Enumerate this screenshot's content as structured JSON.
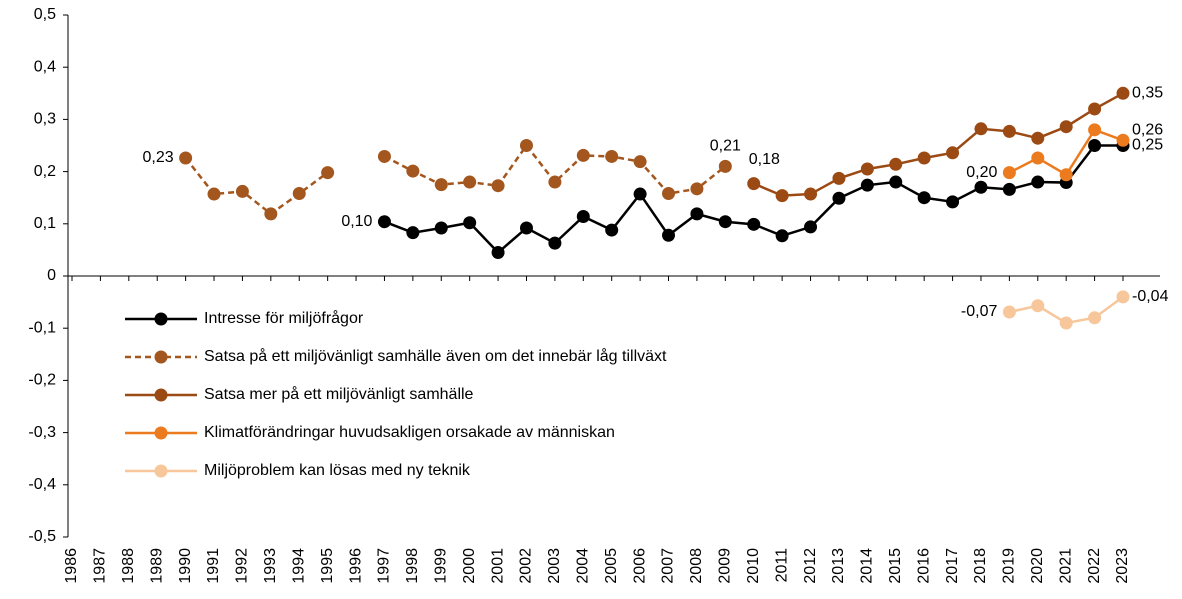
{
  "chart_data": {
    "type": "line",
    "categories": [
      "1986",
      "1987",
      "1988",
      "1989",
      "1990",
      "1991",
      "1992",
      "1993",
      "1994",
      "1995",
      "1996",
      "1997",
      "1998",
      "1999",
      "2000",
      "2001",
      "2002",
      "2003",
      "2004",
      "2005",
      "2006",
      "2007",
      "2008",
      "2009",
      "2010",
      "2011",
      "2012",
      "2013",
      "2014",
      "2015",
      "2016",
      "2017",
      "2018",
      "2019",
      "2020",
      "2021",
      "2022",
      "2023"
    ],
    "ylim": [
      -0.5,
      0.5
    ],
    "yticks": [
      {
        "value": -0.5,
        "label": "-0,5"
      },
      {
        "value": -0.4,
        "label": "-0,4"
      },
      {
        "value": -0.3,
        "label": "-0,3"
      },
      {
        "value": -0.2,
        "label": "-0,2"
      },
      {
        "value": -0.1,
        "label": "-0,1"
      },
      0,
      {
        "value": 0.1,
        "label": "0,1"
      },
      {
        "value": 0.2,
        "label": "0,2"
      },
      {
        "value": 0.3,
        "label": "0,3"
      },
      {
        "value": 0.4,
        "label": "0,4"
      },
      {
        "value": 0.5,
        "label": "0,5"
      }
    ],
    "series": [
      {
        "name": "Intresse för miljöfrågor",
        "color": "#000000",
        "dashed": false,
        "values": [
          null,
          null,
          null,
          null,
          null,
          null,
          null,
          null,
          null,
          null,
          null,
          0.104,
          0.083,
          0.092,
          0.102,
          0.045,
          0.092,
          0.063,
          0.114,
          0.088,
          0.157,
          0.078,
          0.119,
          0.104,
          0.099,
          0.077,
          0.094,
          0.149,
          0.174,
          0.18,
          0.15,
          0.142,
          0.17,
          0.166,
          0.18,
          0.179,
          0.25,
          0.25
        ],
        "value_labels": [
          null,
          null,
          null,
          null,
          null,
          null,
          null,
          null,
          null,
          null,
          null,
          "0,10",
          null,
          null,
          null,
          null,
          null,
          null,
          null,
          null,
          null,
          null,
          null,
          null,
          null,
          null,
          null,
          null,
          null,
          null,
          null,
          null,
          null,
          null,
          null,
          null,
          null,
          "0,25"
        ]
      },
      {
        "name": "Satsa på ett miljövänligt samhälle även om det innebär låg tillväxt",
        "color": "#a3561d",
        "dashed": true,
        "values": [
          null,
          null,
          null,
          null,
          0.226,
          0.157,
          0.162,
          0.119,
          0.158,
          0.198,
          null,
          0.229,
          0.201,
          0.175,
          0.18,
          0.173,
          0.25,
          0.18,
          0.231,
          0.229,
          0.219,
          0.158,
          0.167,
          0.21,
          null,
          null,
          null,
          null,
          null,
          null,
          null,
          null,
          null,
          null,
          null,
          null,
          null,
          null
        ],
        "value_labels": [
          null,
          null,
          null,
          null,
          "0,23",
          null,
          null,
          null,
          null,
          null,
          null,
          null,
          null,
          null,
          null,
          null,
          null,
          null,
          null,
          null,
          null,
          null,
          null,
          "0,21",
          null,
          null,
          null,
          null,
          null,
          null,
          null,
          null,
          null,
          null,
          null,
          null,
          null,
          null
        ]
      },
      {
        "name": "Satsa mer på ett miljövänligt samhälle",
        "color": "#9c4a14",
        "dashed": false,
        "values": [
          null,
          null,
          null,
          null,
          null,
          null,
          null,
          null,
          null,
          null,
          null,
          null,
          null,
          null,
          null,
          null,
          null,
          null,
          null,
          null,
          null,
          null,
          null,
          null,
          0.177,
          0.154,
          0.157,
          0.187,
          0.205,
          0.214,
          0.226,
          0.236,
          0.282,
          0.277,
          0.264,
          0.286,
          0.32,
          0.35
        ],
        "value_labels": [
          null,
          null,
          null,
          null,
          null,
          null,
          null,
          null,
          null,
          null,
          null,
          null,
          null,
          null,
          null,
          null,
          null,
          null,
          null,
          null,
          null,
          null,
          null,
          null,
          "0,18",
          null,
          null,
          null,
          null,
          null,
          null,
          null,
          null,
          null,
          null,
          null,
          null,
          "0,35"
        ]
      },
      {
        "name": "Klimatförändringar huvudsakligen orsakade av människan",
        "color": "#ec7a1e",
        "dashed": false,
        "values": [
          null,
          null,
          null,
          null,
          null,
          null,
          null,
          null,
          null,
          null,
          null,
          null,
          null,
          null,
          null,
          null,
          null,
          null,
          null,
          null,
          null,
          null,
          null,
          null,
          null,
          null,
          null,
          null,
          null,
          null,
          null,
          null,
          null,
          0.198,
          0.226,
          0.194,
          0.28,
          0.26
        ],
        "value_labels": [
          null,
          null,
          null,
          null,
          null,
          null,
          null,
          null,
          null,
          null,
          null,
          null,
          null,
          null,
          null,
          null,
          null,
          null,
          null,
          null,
          null,
          null,
          null,
          null,
          null,
          null,
          null,
          null,
          null,
          null,
          null,
          null,
          null,
          "0,20",
          null,
          null,
          null,
          "0,26"
        ]
      },
      {
        "name": "Miljöproblem kan lösas med ny teknik",
        "color": "#f7c79b",
        "dashed": false,
        "values": [
          null,
          null,
          null,
          null,
          null,
          null,
          null,
          null,
          null,
          null,
          null,
          null,
          null,
          null,
          null,
          null,
          null,
          null,
          null,
          null,
          null,
          null,
          null,
          null,
          null,
          null,
          null,
          null,
          null,
          null,
          null,
          null,
          null,
          -0.069,
          -0.057,
          -0.09,
          -0.08,
          -0.04
        ],
        "value_labels": [
          null,
          null,
          null,
          null,
          null,
          null,
          null,
          null,
          null,
          null,
          null,
          null,
          null,
          null,
          null,
          null,
          null,
          null,
          null,
          null,
          null,
          null,
          null,
          null,
          null,
          null,
          null,
          null,
          null,
          null,
          null,
          null,
          null,
          "-0,07",
          null,
          null,
          null,
          "-0,04"
        ]
      }
    ]
  }
}
